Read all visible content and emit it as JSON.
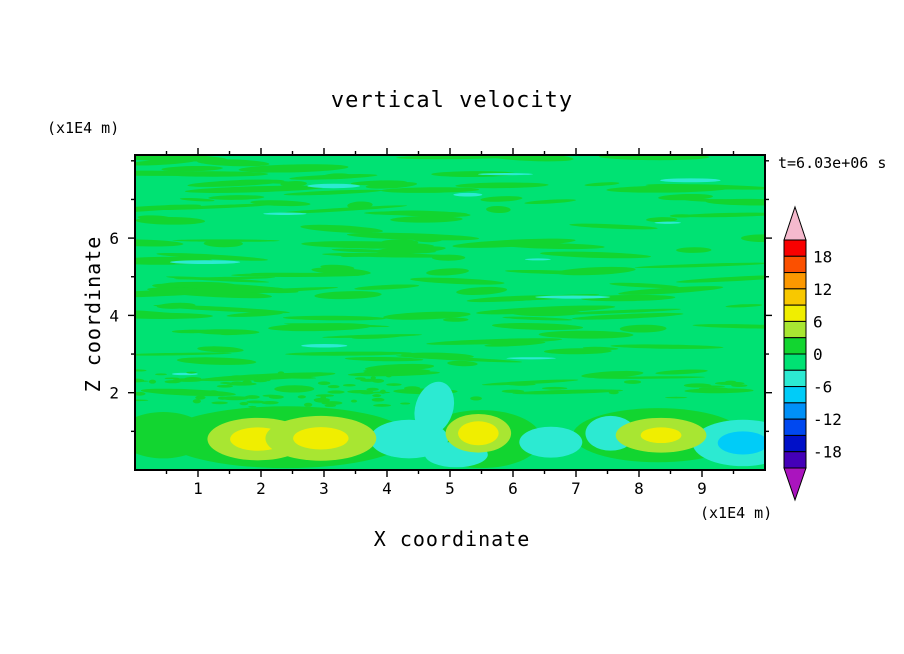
{
  "page": {
    "background": "#ffffff"
  },
  "chart_data": {
    "type": "heatmap",
    "title": "vertical velocity",
    "xlabel": "X coordinate",
    "zlabel": "Z coordinate",
    "x_unit": "(x1E4 m)",
    "z_unit": "(x1E4 m)",
    "annotation": "t=6.03e+06 s",
    "xlim": [
      0,
      10
    ],
    "zlim": [
      0,
      8.15
    ],
    "x_ticks": [
      1,
      2,
      3,
      4,
      5,
      6,
      7,
      8,
      9
    ],
    "x_minor_step": 0.5,
    "z_ticks": [
      2,
      4,
      6
    ],
    "z_minor_step": 1,
    "grid": false,
    "legend_position": "right-colorbar",
    "colorbar": {
      "labels": [
        18,
        12,
        6,
        0,
        -6,
        -12,
        -18
      ],
      "level_min": -21,
      "level_max": 21,
      "level_step": 3,
      "band_colors_top_to_bottom": [
        "#f80000",
        "#fb5000",
        "#fc9800",
        "#f8c800",
        "#f0ee00",
        "#a8e632",
        "#12d530",
        "#00e273",
        "#2cead2",
        "#00ccf8",
        "#0090f8",
        "#0048f0",
        "#0010c8",
        "#4400b8"
      ],
      "over_color": "#f5b9cd",
      "under_color": "#aa14be"
    },
    "field": {
      "base_color": "#00e273",
      "streak_color": "#12d530",
      "texture": {
        "seed": 11,
        "streaks": 150,
        "teal_streaks": 12,
        "dashes": 90
      },
      "cells": [
        {
          "x": 2.4,
          "z": 0.85,
          "rx": 1.95,
          "rz": 0.8,
          "v": 1.5
        },
        {
          "x": 5.5,
          "z": 0.8,
          "rx": 0.95,
          "rz": 0.75,
          "v": 1.5
        },
        {
          "x": 8.3,
          "z": 0.9,
          "rx": 1.35,
          "rz": 0.7,
          "v": 1.5
        },
        {
          "x": 0.45,
          "z": 0.9,
          "rx": 0.7,
          "rz": 0.6,
          "v": 1.5
        },
        {
          "x": 4.35,
          "z": 0.8,
          "rx": 0.62,
          "rz": 0.5,
          "v": -4
        },
        {
          "x": 4.75,
          "z": 1.6,
          "rx": 0.3,
          "rz": 0.7,
          "v": -4,
          "rot": 18
        },
        {
          "x": 5.1,
          "z": 0.4,
          "rx": 0.5,
          "rz": 0.33,
          "v": -4
        },
        {
          "x": 6.6,
          "z": 0.72,
          "rx": 0.5,
          "rz": 0.4,
          "v": -4
        },
        {
          "x": 7.55,
          "z": 0.95,
          "rx": 0.4,
          "rz": 0.45,
          "v": -4
        },
        {
          "x": 9.65,
          "z": 0.7,
          "rx": 0.8,
          "rz": 0.6,
          "v": -4,
          "core_v": -7,
          "core_f": 0.5
        },
        {
          "x": 1.95,
          "z": 0.8,
          "rx": 0.8,
          "rz": 0.55,
          "v": 4,
          "core_v": 7,
          "core_f": 0.55
        },
        {
          "x": 2.95,
          "z": 0.82,
          "rx": 0.88,
          "rz": 0.58,
          "v": 4,
          "core_v": 7,
          "core_f": 0.5
        },
        {
          "x": 5.45,
          "z": 0.95,
          "rx": 0.52,
          "rz": 0.5,
          "v": 4,
          "core_v": 7,
          "core_f": 0.62
        },
        {
          "x": 8.35,
          "z": 0.9,
          "rx": 0.72,
          "rz": 0.45,
          "v": 4,
          "core_v": 7,
          "core_f": 0.45
        }
      ]
    }
  }
}
